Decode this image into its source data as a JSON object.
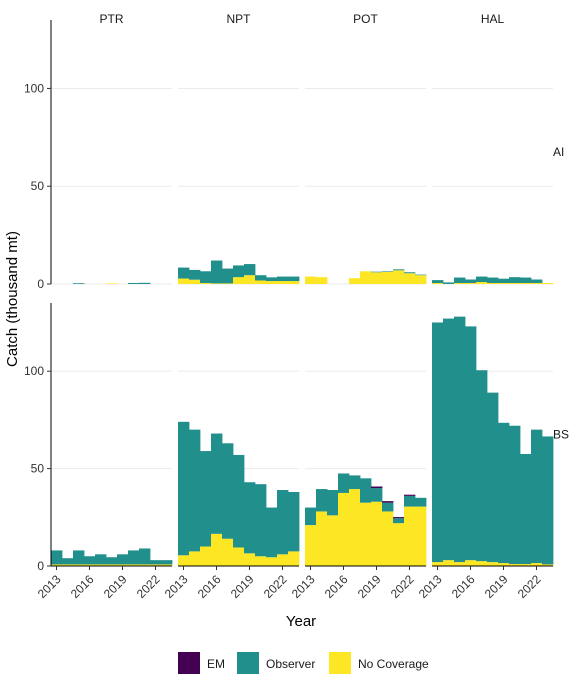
{
  "chart_data": {
    "type": "bar",
    "stacked": true,
    "xlabel": "Year",
    "ylabel": "Catch (thousand mt)",
    "columns": [
      "PTR",
      "NPT",
      "POT",
      "HAL"
    ],
    "rows": [
      "AI",
      "BS"
    ],
    "x": [
      2013,
      2014,
      2015,
      2016,
      2017,
      2018,
      2019,
      2020,
      2021,
      2022,
      2023
    ],
    "x_ticks": [
      "2013",
      "2016",
      "2019",
      "2022"
    ],
    "ylim": [
      0,
      130
    ],
    "y_ticks": [
      "0",
      "50",
      "100"
    ],
    "grid": "horizontal",
    "legend": {
      "position": "bottom",
      "entries": [
        {
          "name": "EM",
          "color": "#440154"
        },
        {
          "name": "Observer",
          "color": "#21908C"
        },
        {
          "name": "No Coverage",
          "color": "#FDE725"
        }
      ]
    },
    "panels": [
      {
        "row": "AI",
        "column": "PTR",
        "series": [
          {
            "name": "No Coverage",
            "values": [
              0,
              0,
              0,
              0,
              0,
              0.3,
              0,
              0,
              0,
              0,
              0
            ]
          },
          {
            "name": "Observer",
            "values": [
              0,
              0,
              0.4,
              0,
              0,
              0,
              0,
              0.5,
              0.6,
              0,
              0
            ]
          },
          {
            "name": "EM",
            "values": [
              0,
              0,
              0,
              0,
              0,
              0,
              0,
              0,
              0,
              0,
              0
            ]
          }
        ]
      },
      {
        "row": "AI",
        "column": "NPT",
        "series": [
          {
            "name": "No Coverage",
            "values": [
              2.8,
              2.2,
              0.5,
              0.3,
              0.3,
              3.5,
              4.5,
              1.8,
              1.5,
              1.5,
              1.5
            ]
          },
          {
            "name": "Observer",
            "values": [
              5.6,
              5.0,
              6.0,
              11.7,
              7.6,
              6.0,
              5.7,
              2.7,
              1.9,
              2.3,
              2.3
            ]
          },
          {
            "name": "EM",
            "values": [
              0,
              0,
              0,
              0,
              0,
              0,
              0,
              0,
              0,
              0,
              0
            ]
          }
        ]
      },
      {
        "row": "AI",
        "column": "POT",
        "series": [
          {
            "name": "No Coverage",
            "values": [
              3.8,
              3.5,
              0,
              0,
              3.0,
              6.5,
              6.0,
              6.2,
              7.0,
              5.5,
              4.5
            ]
          },
          {
            "name": "Observer",
            "values": [
              0,
              0,
              0,
              0,
              0,
              0,
              0.3,
              0.3,
              0.5,
              0.5,
              0.3
            ]
          },
          {
            "name": "EM",
            "values": [
              0,
              0,
              0,
              0,
              0,
              0,
              0,
              0,
              0,
              0,
              0
            ]
          }
        ]
      },
      {
        "row": "AI",
        "column": "HAL",
        "series": [
          {
            "name": "No Coverage",
            "values": [
              0.5,
              0,
              0.5,
              0.5,
              1.0,
              0.5,
              0.5,
              0.5,
              0.5,
              0.5,
              0.5
            ]
          },
          {
            "name": "Observer",
            "values": [
              1.5,
              0.8,
              2.8,
              1.8,
              2.8,
              2.8,
              2.2,
              3.0,
              2.8,
              1.8,
              0
            ]
          },
          {
            "name": "EM",
            "values": [
              0,
              0,
              0,
              0,
              0,
              0,
              0,
              0,
              0,
              0,
              0
            ]
          }
        ]
      },
      {
        "row": "BS",
        "column": "PTR",
        "series": [
          {
            "name": "No Coverage",
            "values": [
              0.8,
              0.8,
              0.8,
              0.8,
              0.8,
              0.8,
              0.8,
              0.8,
              0.8,
              0.8,
              0.8
            ]
          },
          {
            "name": "Observer",
            "values": [
              7.2,
              3.2,
              7.2,
              4.2,
              5.2,
              3.7,
              5.2,
              7.2,
              8.2,
              2.2,
              2.2
            ]
          },
          {
            "name": "EM",
            "values": [
              0,
              0,
              0,
              0,
              0,
              0,
              0,
              0,
              0,
              0,
              0
            ]
          }
        ]
      },
      {
        "row": "BS",
        "column": "NPT",
        "series": [
          {
            "name": "No Coverage",
            "values": [
              5.5,
              7.5,
              10.0,
              16.5,
              14.0,
              9.5,
              6.5,
              5.0,
              4.5,
              6.0,
              7.5
            ]
          },
          {
            "name": "Observer",
            "values": [
              68.5,
              62.5,
              49.0,
              51.5,
              49.0,
              47.5,
              36.5,
              37.0,
              25.5,
              33.0,
              30.5
            ]
          },
          {
            "name": "EM",
            "values": [
              0,
              0,
              0,
              0,
              0,
              0,
              0,
              0,
              0,
              0,
              0
            ]
          }
        ]
      },
      {
        "row": "BS",
        "column": "POT",
        "series": [
          {
            "name": "No Coverage",
            "values": [
              21.0,
              28.0,
              26.0,
              37.5,
              39.5,
              32.5,
              33.0,
              28.0,
              22.0,
              30.5,
              30.5
            ]
          },
          {
            "name": "Observer",
            "values": [
              9.0,
              11.5,
              13.0,
              10.0,
              7.0,
              12.5,
              7.0,
              4.5,
              2.5,
              5.5,
              4.5
            ]
          },
          {
            "name": "EM",
            "values": [
              0,
              0,
              0,
              0,
              0,
              0,
              0.8,
              0.8,
              0.6,
              0.6,
              0
            ]
          }
        ]
      },
      {
        "row": "BS",
        "column": "HAL",
        "series": [
          {
            "name": "No Coverage",
            "values": [
              2.0,
              3.0,
              2.0,
              3.0,
              2.5,
              2.0,
              1.5,
              1.0,
              1.0,
              1.5,
              0.8
            ]
          },
          {
            "name": "Observer",
            "values": [
              123.0,
              124.0,
              126.0,
              120.0,
              98.0,
              87.0,
              72.0,
              71.0,
              56.5,
              68.5,
              65.7
            ]
          },
          {
            "name": "EM",
            "values": [
              0,
              0,
              0,
              0,
              0,
              0,
              0,
              0,
              0,
              0,
              0
            ]
          }
        ]
      }
    ]
  }
}
